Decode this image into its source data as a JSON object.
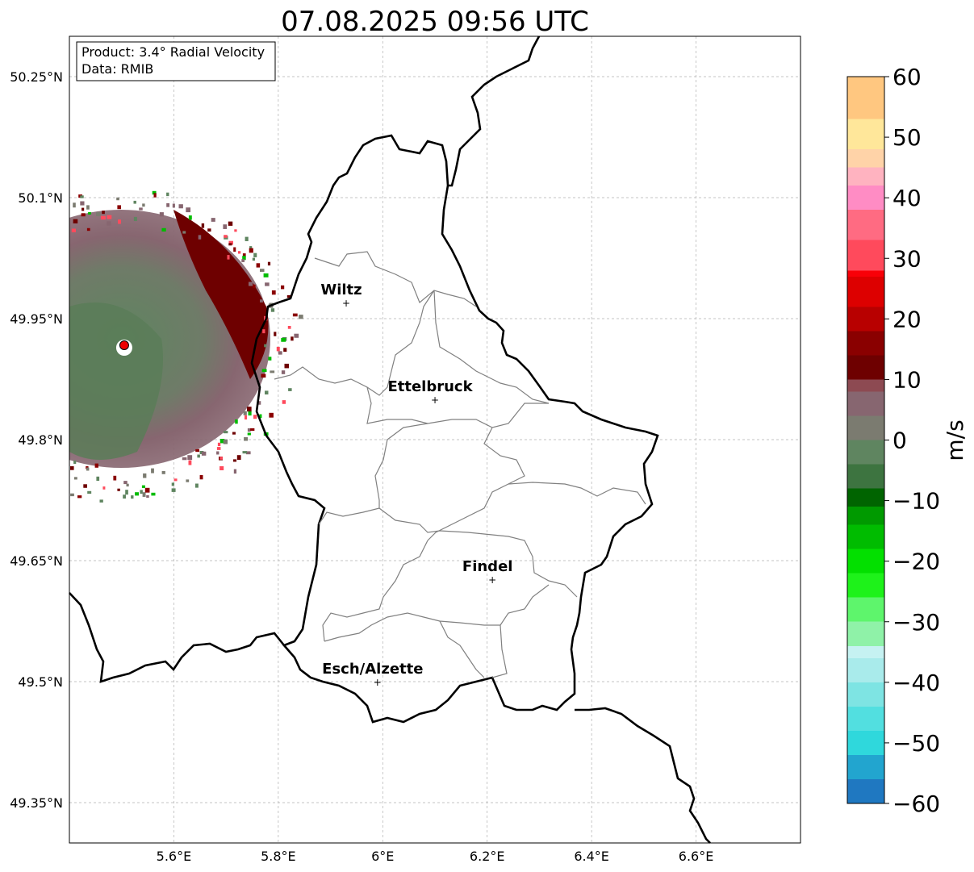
{
  "title": "07.08.2025 09:56 UTC",
  "info": {
    "product": "Product: 3.4° Radial Velocity",
    "data": "Data: RMIB"
  },
  "map": {
    "lon_range": [
      5.4,
      6.8
    ],
    "lat_range": [
      49.3,
      50.3
    ],
    "lon_ticks": [
      {
        "value": 5.6,
        "label": "5.6°E"
      },
      {
        "value": 5.8,
        "label": "5.8°E"
      },
      {
        "value": 6.0,
        "label": "6°E"
      },
      {
        "value": 6.2,
        "label": "6.2°E"
      },
      {
        "value": 6.4,
        "label": "6.4°E"
      },
      {
        "value": 6.6,
        "label": "6.6°E"
      }
    ],
    "lat_ticks": [
      {
        "value": 50.25,
        "label": "50.25°N"
      },
      {
        "value": 50.1,
        "label": "50.1°N"
      },
      {
        "value": 49.95,
        "label": "49.95°N"
      },
      {
        "value": 49.8,
        "label": "49.8°N"
      },
      {
        "value": 49.65,
        "label": "49.65°N"
      },
      {
        "value": 49.5,
        "label": "49.5°N"
      },
      {
        "value": 49.35,
        "label": "49.35°N"
      }
    ],
    "grid": true,
    "cities": [
      {
        "name": "Wiltz",
        "lon": 5.93,
        "lat": 49.97
      },
      {
        "name": "Ettelbruck",
        "lon": 6.1,
        "lat": 49.85
      },
      {
        "name": "Findel",
        "lon": 6.21,
        "lat": 49.627
      },
      {
        "name": "Esch/Alzette",
        "lon": 5.99,
        "lat": 49.5
      }
    ],
    "radar": {
      "lon": 5.505,
      "lat": 49.917
    },
    "colors": {
      "border": "#000000",
      "canton": "#808080",
      "grid": "#b0b0b0",
      "radar_marker": "#ee0000"
    }
  },
  "colorbar": {
    "label": "m/s",
    "min": -60,
    "max": 60,
    "ticks": [
      {
        "value": 60,
        "label": "60"
      },
      {
        "value": 50,
        "label": "50"
      },
      {
        "value": 40,
        "label": "40"
      },
      {
        "value": 30,
        "label": "30"
      },
      {
        "value": 20,
        "label": "20"
      },
      {
        "value": 10,
        "label": "10"
      },
      {
        "value": 0,
        "label": "0"
      },
      {
        "value": -10,
        "label": "−10"
      },
      {
        "value": -20,
        "label": "−20"
      },
      {
        "value": -30,
        "label": "−30"
      },
      {
        "value": -40,
        "label": "−40"
      },
      {
        "value": -50,
        "label": "−50"
      },
      {
        "value": -60,
        "label": "−60"
      }
    ],
    "stops": [
      {
        "value": -60,
        "color": "#1f78c1"
      },
      {
        "value": -56,
        "color": "#22a5cf"
      },
      {
        "value": -52,
        "color": "#2fd8dc"
      },
      {
        "value": -48,
        "color": "#52dfe0"
      },
      {
        "value": -44,
        "color": "#7ee4e3"
      },
      {
        "value": -40,
        "color": "#a9ebeb"
      },
      {
        "value": -36,
        "color": "#c6f2f2"
      },
      {
        "value": -34,
        "color": "#8ff2a8"
      },
      {
        "value": -30,
        "color": "#5ef56c"
      },
      {
        "value": -26,
        "color": "#1ef21a"
      },
      {
        "value": -22,
        "color": "#03e000"
      },
      {
        "value": -18,
        "color": "#00bc00"
      },
      {
        "value": -14,
        "color": "#009a00"
      },
      {
        "value": -11,
        "color": "#006400"
      },
      {
        "value": -8,
        "color": "#3d7440"
      },
      {
        "value": -4,
        "color": "#5f8560"
      },
      {
        "value": 0,
        "color": "#7b7b70"
      },
      {
        "value": 4,
        "color": "#876670"
      },
      {
        "value": 8,
        "color": "#8d4a52"
      },
      {
        "value": 10,
        "color": "#6e0000"
      },
      {
        "value": 14,
        "color": "#8a0000"
      },
      {
        "value": 18,
        "color": "#b80000"
      },
      {
        "value": 22,
        "color": "#dd0000"
      },
      {
        "value": 27,
        "color": "#f80008"
      },
      {
        "value": 28,
        "color": "#ff4a5c"
      },
      {
        "value": 33,
        "color": "#ff6b82"
      },
      {
        "value": 38,
        "color": "#ff8cc4"
      },
      {
        "value": 42,
        "color": "#ffb3c0"
      },
      {
        "value": 45,
        "color": "#ffd3a8"
      },
      {
        "value": 48,
        "color": "#ffe79a"
      },
      {
        "value": 53,
        "color": "#ffc780"
      },
      {
        "value": 60,
        "color": "#ff9a50"
      }
    ]
  }
}
